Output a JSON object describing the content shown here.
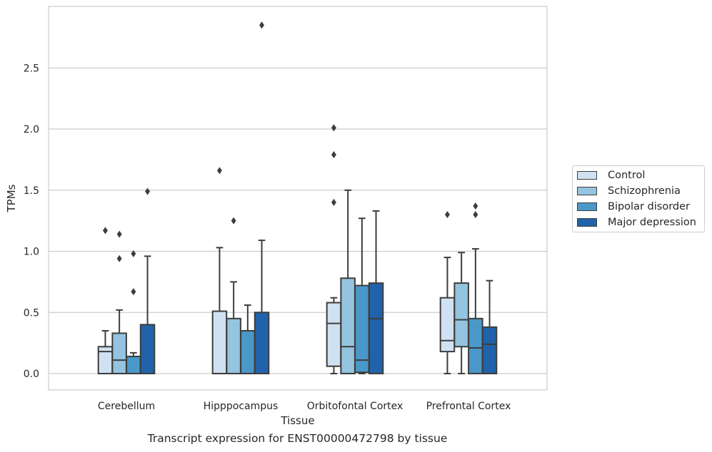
{
  "chart_data": {
    "type": "box",
    "xlabel": "Tissue",
    "ylabel": "TPMs",
    "caption": "Transcript expression for ENST00000472798 by tissue",
    "ylim": [
      -0.14,
      2.98
    ],
    "yticks": [
      0.0,
      0.5,
      1.0,
      1.5,
      2.0,
      2.5
    ],
    "ytick_labels": [
      "0.0",
      "0.5",
      "1.0",
      "1.5",
      "2.0",
      "2.5"
    ],
    "grid": "horizontal",
    "legend_position": "right, outside plot",
    "categories": [
      "Cerebellum",
      "Hipppocampus",
      "Orbitofontal Cortex",
      "Prefrontal Cortex"
    ],
    "series": [
      {
        "name": "Control",
        "color": "#d0e1f2",
        "boxes": [
          {
            "min": 0.0,
            "q1": 0.0,
            "median": 0.18,
            "q3": 0.22,
            "max": 0.35,
            "outliers": [
              1.17
            ]
          },
          {
            "min": 0.0,
            "q1": 0.0,
            "median": 0.0,
            "q3": 0.51,
            "max": 1.03,
            "outliers": [
              1.66
            ]
          },
          {
            "min": 0.0,
            "q1": 0.06,
            "median": 0.41,
            "q3": 0.58,
            "max": 0.62,
            "outliers": [
              1.4,
              1.79,
              2.01
            ]
          },
          {
            "min": 0.0,
            "q1": 0.18,
            "median": 0.27,
            "q3": 0.62,
            "max": 0.95,
            "outliers": [
              1.3
            ]
          }
        ]
      },
      {
        "name": "Schizophrenia",
        "color": "#94c4df",
        "boxes": [
          {
            "min": 0.0,
            "q1": 0.0,
            "median": 0.11,
            "q3": 0.33,
            "max": 0.52,
            "outliers": [
              0.94,
              1.14
            ]
          },
          {
            "min": 0.0,
            "q1": 0.0,
            "median": 0.0,
            "q3": 0.45,
            "max": 0.75,
            "outliers": [
              1.25
            ]
          },
          {
            "min": 0.0,
            "q1": 0.0,
            "median": 0.22,
            "q3": 0.78,
            "max": 1.5,
            "outliers": []
          },
          {
            "min": 0.0,
            "q1": 0.22,
            "median": 0.44,
            "q3": 0.74,
            "max": 0.99,
            "outliers": []
          }
        ]
      },
      {
        "name": "Bipolar disorder",
        "color": "#4a98c9",
        "boxes": [
          {
            "min": 0.0,
            "q1": 0.0,
            "median": 0.0,
            "q3": 0.14,
            "max": 0.17,
            "outliers": [
              0.67,
              0.98
            ]
          },
          {
            "min": 0.0,
            "q1": 0.0,
            "median": 0.0,
            "q3": 0.35,
            "max": 0.56,
            "outliers": []
          },
          {
            "min": 0.0,
            "q1": 0.01,
            "median": 0.11,
            "q3": 0.72,
            "max": 1.27,
            "outliers": []
          },
          {
            "min": 0.0,
            "q1": 0.0,
            "median": 0.21,
            "q3": 0.45,
            "max": 1.02,
            "outliers": [
              1.3,
              1.37
            ]
          }
        ]
      },
      {
        "name": "Major depression",
        "color": "#2163aa",
        "boxes": [
          {
            "min": 0.0,
            "q1": 0.0,
            "median": 0.0,
            "q3": 0.4,
            "max": 0.96,
            "outliers": [
              1.49
            ]
          },
          {
            "min": 0.0,
            "q1": 0.0,
            "median": 0.0,
            "q3": 0.5,
            "max": 1.09,
            "outliers": [
              2.85
            ]
          },
          {
            "min": 0.0,
            "q1": 0.0,
            "median": 0.45,
            "q3": 0.74,
            "max": 1.33,
            "outliers": []
          },
          {
            "min": 0.0,
            "q1": 0.0,
            "median": 0.24,
            "q3": 0.38,
            "max": 0.76,
            "outliers": []
          }
        ]
      }
    ]
  }
}
